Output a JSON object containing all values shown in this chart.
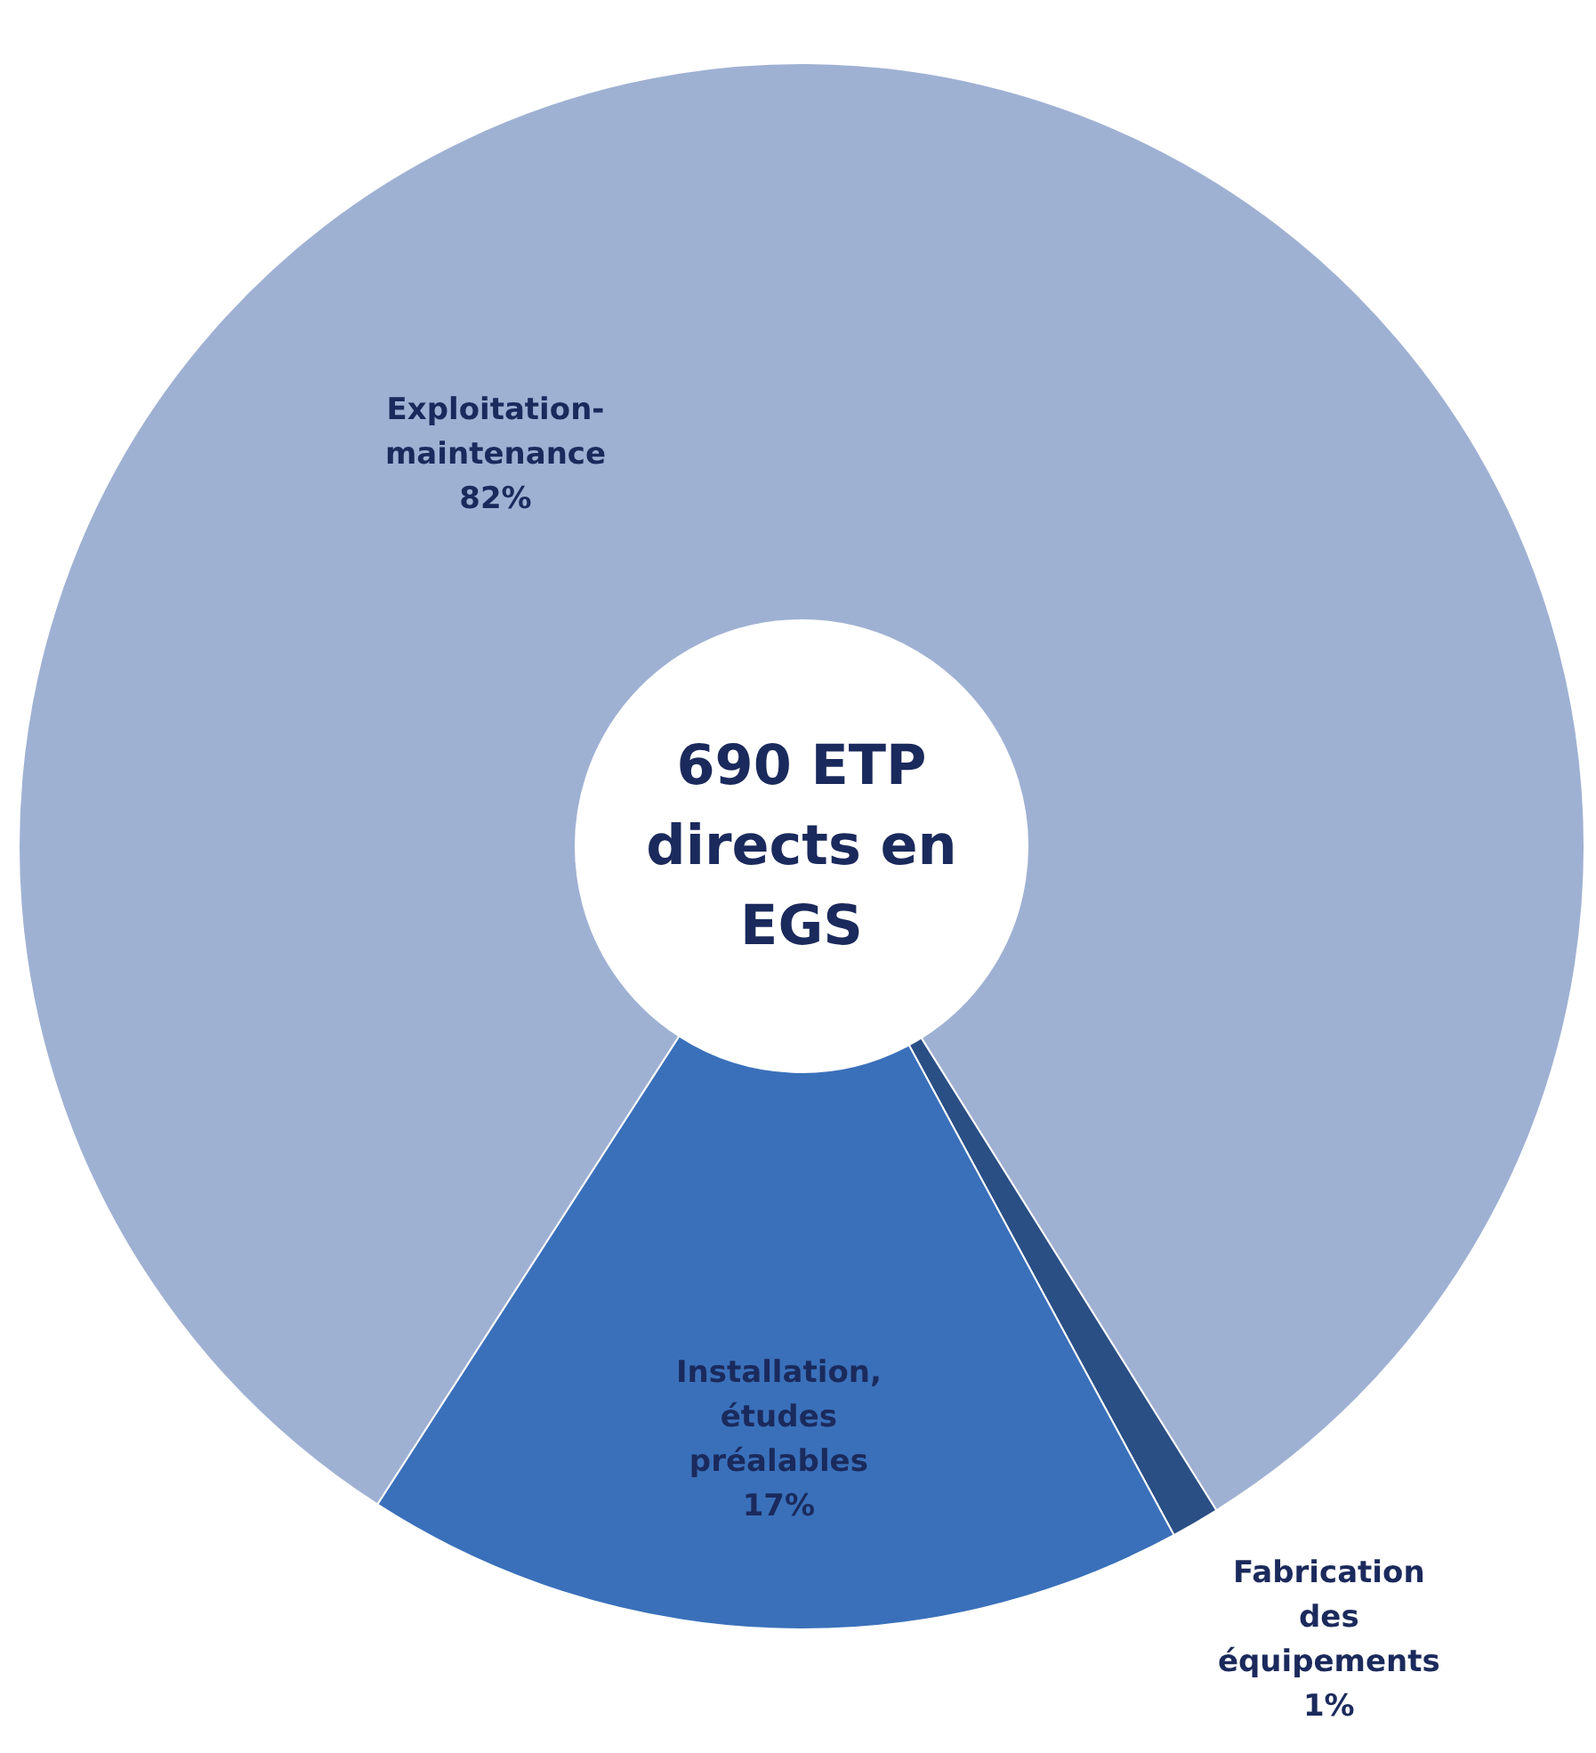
{
  "chart_data": {
    "type": "donut",
    "title": "690 ETP\ndirects en\nEGS",
    "categories": [
      "Exploitation-\nmaintenance",
      "Fabrication\ndes\néquipements",
      "Installation,\nétudes\npréalables"
    ],
    "values": [
      82,
      1,
      17
    ],
    "colors": [
      "#9fb1d3",
      "#2a4f85",
      "#3a70ba"
    ],
    "value_labels": [
      "82%",
      "1%",
      "17%"
    ]
  }
}
